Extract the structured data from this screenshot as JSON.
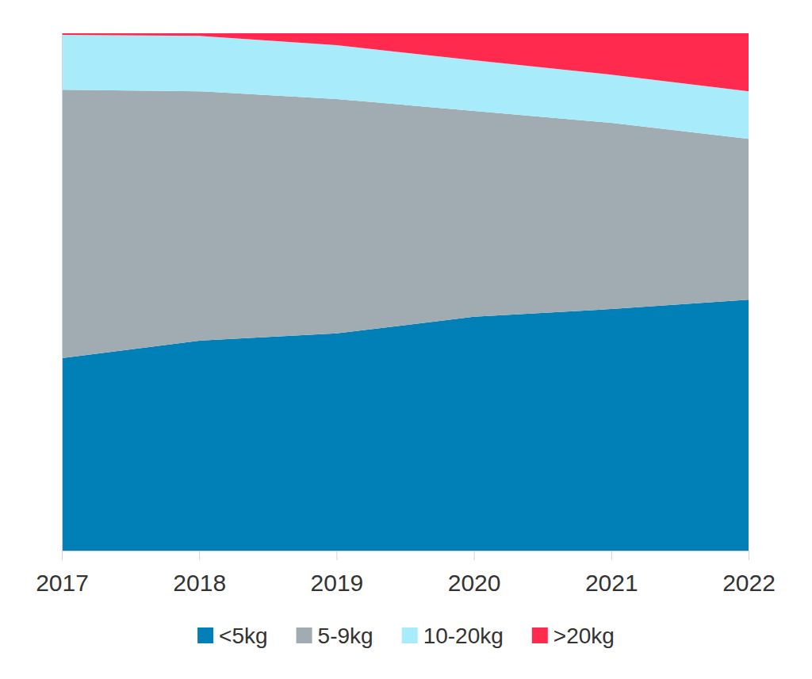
{
  "chart_data": {
    "type": "area",
    "stacked": true,
    "tick_labels": "x",
    "legend": "bottom",
    "categories": [
      "2017",
      "2018",
      "2019",
      "2020",
      "2021",
      "2022"
    ],
    "ylim": [
      0,
      100
    ],
    "series": [
      {
        "name": "<5kg",
        "color": "#0080b6",
        "values": [
          37.2,
          40.6,
          42.0,
          45.2,
          46.7,
          48.5
        ]
      },
      {
        "name": "5-9kg",
        "color": "#a0abb2",
        "values": [
          51.9,
          48.2,
          45.3,
          39.8,
          36.0,
          31.1
        ]
      },
      {
        "name": "10-20kg",
        "color": "#a8ecfc",
        "values": [
          10.6,
          10.7,
          10.4,
          9.8,
          9.3,
          9.2
        ]
      },
      {
        "name": ">20kg",
        "color": "#ff2a4e",
        "values": [
          0.3,
          0.5,
          2.3,
          5.2,
          8.0,
          11.2
        ]
      }
    ]
  }
}
